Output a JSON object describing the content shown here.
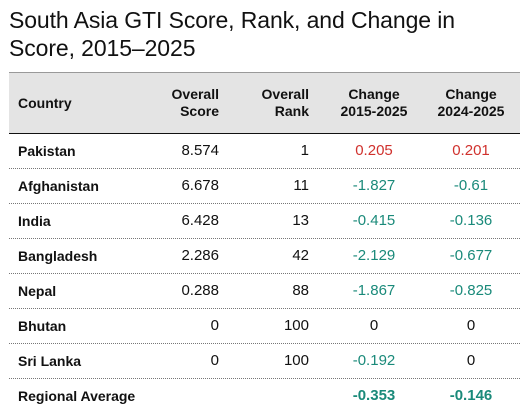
{
  "title": "South Asia GTI Score, Rank, and Change in Score, 2015–2025",
  "headers": {
    "country": "Country",
    "score_l1": "Overall",
    "score_l2": "Score",
    "rank_l1": "Overall",
    "rank_l2": "Rank",
    "chg1_l1": "Change",
    "chg1_l2": "2015-2025",
    "chg2_l1": "Change",
    "chg2_l2": "2024-2025"
  },
  "rows": [
    {
      "country": "Pakistan",
      "score": "8.574",
      "rank": "1",
      "change_2015_2025": "0.205",
      "change_2024_2025": "0.201"
    },
    {
      "country": "Afghanistan",
      "score": "6.678",
      "rank": "11",
      "change_2015_2025": "-1.827",
      "change_2024_2025": "-0.61"
    },
    {
      "country": "India",
      "score": "6.428",
      "rank": "13",
      "change_2015_2025": "-0.415",
      "change_2024_2025": "-0.136"
    },
    {
      "country": "Bangladesh",
      "score": "2.286",
      "rank": "42",
      "change_2015_2025": "-2.129",
      "change_2024_2025": "-0.677"
    },
    {
      "country": "Nepal",
      "score": "0.288",
      "rank": "88",
      "change_2015_2025": "-1.867",
      "change_2024_2025": "-0.825"
    },
    {
      "country": "Bhutan",
      "score": "0",
      "rank": "100",
      "change_2015_2025": "0",
      "change_2024_2025": "0"
    },
    {
      "country": "Sri Lanka",
      "score": "0",
      "rank": "100",
      "change_2015_2025": "-0.192",
      "change_2024_2025": "0"
    }
  ],
  "regional_average": {
    "label": "Regional Average",
    "change_2015_2025": "-0.353",
    "change_2024_2025": "-0.146"
  },
  "colors": {
    "positive": "#d0312d",
    "negative": "#1a8a7a",
    "header_bg": "#e4e4e4"
  }
}
